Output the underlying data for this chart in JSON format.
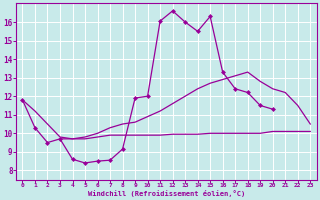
{
  "line1_x": [
    0,
    1,
    2,
    3,
    4,
    5,
    6,
    7,
    8,
    9,
    10,
    11,
    12,
    13,
    14,
    15,
    16,
    17,
    18,
    19,
    20,
    21
  ],
  "line1_y": [
    11.8,
    10.3,
    9.5,
    9.7,
    8.6,
    8.4,
    8.5,
    8.55,
    9.15,
    11.9,
    12.0,
    16.05,
    16.6,
    16.0,
    15.5,
    16.3,
    13.3,
    12.4,
    12.2,
    11.5,
    11.3,
    null
  ],
  "line2_x": [
    0,
    1,
    2,
    3,
    4,
    5,
    6,
    7,
    8,
    9,
    10,
    11,
    12,
    13,
    14,
    15,
    16,
    17,
    18,
    19,
    20,
    21,
    22,
    23
  ],
  "line2_y": [
    11.8,
    11.2,
    10.5,
    9.8,
    9.7,
    9.8,
    10.0,
    10.3,
    10.5,
    10.6,
    10.9,
    11.2,
    11.6,
    12.0,
    12.4,
    12.7,
    12.9,
    13.1,
    13.3,
    12.8,
    12.4,
    12.2,
    11.5,
    10.5
  ],
  "line3_x": [
    3,
    4,
    5,
    6,
    7,
    8,
    9,
    10,
    11,
    12,
    13,
    14,
    15,
    16,
    17,
    18,
    19,
    20,
    21,
    22,
    23
  ],
  "line3_y": [
    9.7,
    9.7,
    9.7,
    9.8,
    9.9,
    9.9,
    9.9,
    9.9,
    9.9,
    9.95,
    9.95,
    9.95,
    10.0,
    10.0,
    10.0,
    10.0,
    10.0,
    10.1,
    10.1,
    10.1,
    10.1
  ],
  "line_color": "#990099",
  "bg_color": "#c8eaea",
  "grid_color": "#aadddd",
  "xlabel": "Windchill (Refroidissement éolien,°C)",
  "ylim": [
    7.5,
    17.0
  ],
  "xlim": [
    -0.5,
    23.5
  ],
  "yticks": [
    8,
    9,
    10,
    11,
    12,
    13,
    14,
    15,
    16
  ],
  "xticks": [
    0,
    1,
    2,
    3,
    4,
    5,
    6,
    7,
    8,
    9,
    10,
    11,
    12,
    13,
    14,
    15,
    16,
    17,
    18,
    19,
    20,
    21,
    22,
    23
  ]
}
